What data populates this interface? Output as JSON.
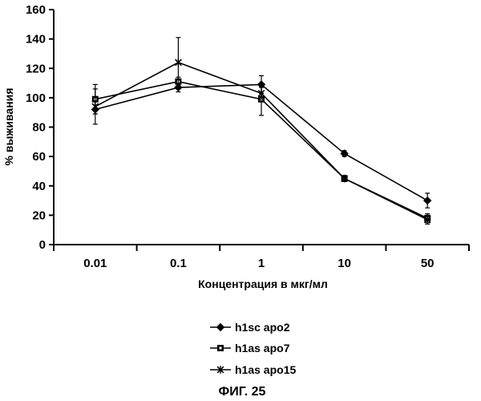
{
  "chart_data": {
    "type": "line",
    "title": "",
    "xlabel": "Концентрация в мкг/мл",
    "ylabel": "% выживания",
    "categories": [
      "0.01",
      "0.1",
      "1",
      "10",
      "50"
    ],
    "yticks": [
      "0",
      "20",
      "40",
      "60",
      "80",
      "100",
      "120",
      "140",
      "160"
    ],
    "ylim": [
      0,
      160
    ],
    "grid": false,
    "legend_position": "bottom-center",
    "series": [
      {
        "name": "h1sc apo2",
        "marker": "diamond",
        "values": [
          92,
          107,
          109,
          62,
          30
        ],
        "err": [
          3,
          3,
          6,
          2,
          5
        ]
      },
      {
        "name": "h1as apo7",
        "marker": "square",
        "values": [
          99,
          111,
          99,
          45,
          18
        ],
        "err": [
          10,
          3,
          11,
          2,
          3
        ]
      },
      {
        "name": "h1as apo15",
        "marker": "star",
        "values": [
          94,
          124,
          103,
          45,
          17
        ],
        "err": [
          12,
          17,
          4,
          2,
          3
        ]
      }
    ],
    "figure_label": "ФИГ. 25"
  }
}
